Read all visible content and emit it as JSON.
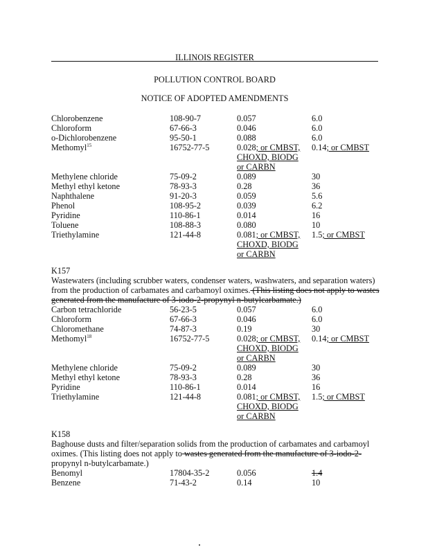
{
  "header": {
    "register": "ILLINOIS REGISTER",
    "board": "POLLUTION CONTROL BOARD",
    "notice": "NOTICE OF ADOPTED AMENDMENTS"
  },
  "table1": [
    {
      "name": "Chlorobenzene",
      "cas": "108-90-7",
      "ww": [
        [
          [
            "0.057",
            ""
          ]
        ]
      ],
      "nww": [
        [
          "6.0",
          ""
        ]
      ]
    },
    {
      "name": "Chloroform",
      "cas": "67-66-3",
      "ww": [
        [
          [
            "0.046",
            ""
          ]
        ]
      ],
      "nww": [
        [
          "6.0",
          ""
        ]
      ]
    },
    {
      "name": "o-Dichlorobenzene",
      "cas": "95-50-1",
      "ww": [
        [
          [
            "0.088",
            ""
          ]
        ]
      ],
      "nww": [
        [
          "6.0",
          ""
        ]
      ]
    },
    {
      "name": "Methomyl",
      "sup": "15",
      "cas": "16752-77-5",
      "ww": [
        [
          [
            "0.028",
            ""
          ],
          [
            "; or CMBST,",
            "u"
          ]
        ],
        [
          [
            "CHOXD, BIODG",
            "u"
          ]
        ],
        [
          [
            "or CARBN",
            "u"
          ]
        ]
      ],
      "nww": [
        [
          "0.14",
          ""
        ],
        [
          "; or CMBST",
          "u"
        ]
      ]
    },
    {
      "name": "Methylene chloride",
      "cas": "75-09-2",
      "ww": [
        [
          [
            "0.089",
            ""
          ]
        ]
      ],
      "nww": [
        [
          "30",
          ""
        ]
      ]
    },
    {
      "name": "Methyl ethyl ketone",
      "cas": "78-93-3",
      "ww": [
        [
          [
            "0.28",
            ""
          ]
        ]
      ],
      "nww": [
        [
          "36",
          ""
        ]
      ]
    },
    {
      "name": "Naphthalene",
      "cas": "91-20-3",
      "ww": [
        [
          [
            "0.059",
            ""
          ]
        ]
      ],
      "nww": [
        [
          "5.6",
          ""
        ]
      ]
    },
    {
      "name": "Phenol",
      "cas": "108-95-2",
      "ww": [
        [
          [
            "0.039",
            ""
          ]
        ]
      ],
      "nww": [
        [
          "6.2",
          ""
        ]
      ]
    },
    {
      "name": "Pyridine",
      "cas": "110-86-1",
      "ww": [
        [
          [
            "0.014",
            ""
          ]
        ]
      ],
      "nww": [
        [
          "16",
          ""
        ]
      ]
    },
    {
      "name": "Toluene",
      "cas": "108-88-3",
      "ww": [
        [
          [
            "0.080",
            ""
          ]
        ]
      ],
      "nww": [
        [
          "10",
          ""
        ]
      ]
    },
    {
      "name": "Triethylamine",
      "cas": "121-44-8",
      "ww": [
        [
          [
            "0.081",
            ""
          ],
          [
            "; or CMBST,",
            "u"
          ]
        ],
        [
          [
            "CHOXD, BIODG",
            "u"
          ]
        ],
        [
          [
            "or CARBN",
            "u"
          ]
        ]
      ],
      "nww": [
        [
          "1.5",
          ""
        ],
        [
          "; or CMBST",
          "u"
        ]
      ]
    }
  ],
  "k157": {
    "code": "K157",
    "desc": [
      [
        [
          "Wastewaters (including scrubber waters, condenser waters, washwaters, and separation waters)",
          ""
        ]
      ],
      [
        [
          "from the production of carbamates and carbamoyl oximes.",
          ""
        ],
        [
          " (This listing does not apply to wastes",
          "s"
        ]
      ],
      [
        [
          "generated from the manufacture of 3-iodo-2-propynyl n-butylcarbamate.)",
          "s"
        ]
      ]
    ],
    "rows": [
      {
        "name": "Carbon tetrachloride",
        "cas": "56-23-5",
        "ww": [
          [
            [
              "0.057",
              ""
            ]
          ]
        ],
        "nww": [
          [
            "6.0",
            ""
          ]
        ]
      },
      {
        "name": "Chloroform",
        "cas": "67-66-3",
        "ww": [
          [
            [
              "0.046",
              ""
            ]
          ]
        ],
        "nww": [
          [
            "6.0",
            ""
          ]
        ]
      },
      {
        "name": "Chloromethane",
        "cas": "74-87-3",
        "ww": [
          [
            [
              "0.19",
              ""
            ]
          ]
        ],
        "nww": [
          [
            "30",
            ""
          ]
        ]
      },
      {
        "name": "Methomyl",
        "sup": "18",
        "cas": "16752-77-5",
        "ww": [
          [
            [
              "0.028",
              ""
            ],
            [
              "; or CMBST,",
              "u"
            ]
          ],
          [
            [
              "CHOXD, BIODG",
              "u"
            ]
          ],
          [
            [
              "or CARBN",
              "u"
            ]
          ]
        ],
        "nww": [
          [
            "0.14",
            ""
          ],
          [
            "; or CMBST",
            "u"
          ]
        ]
      },
      {
        "name": "Methylene chloride",
        "cas": "75-09-2",
        "ww": [
          [
            [
              "0.089",
              ""
            ]
          ]
        ],
        "nww": [
          [
            "30",
            ""
          ]
        ]
      },
      {
        "name": "Methyl ethyl ketone",
        "cas": "78-93-3",
        "ww": [
          [
            [
              "0.28",
              ""
            ]
          ]
        ],
        "nww": [
          [
            "36",
            ""
          ]
        ]
      },
      {
        "name": "Pyridine",
        "cas": "110-86-1",
        "ww": [
          [
            [
              "0.014",
              ""
            ]
          ]
        ],
        "nww": [
          [
            "16",
            ""
          ]
        ]
      },
      {
        "name": "Triethylamine",
        "cas": "121-44-8",
        "ww": [
          [
            [
              "0.081",
              ""
            ],
            [
              "; or CMBST,",
              "u"
            ]
          ],
          [
            [
              "CHOXD, BIODG",
              "u"
            ]
          ],
          [
            [
              "or CARBN",
              "u"
            ]
          ]
        ],
        "nww": [
          [
            "1.5",
            ""
          ],
          [
            "; or CMBST",
            "u"
          ]
        ]
      }
    ]
  },
  "k158": {
    "code": "K158",
    "desc": [
      [
        [
          "Baghouse dusts and filter/separation solids from the production of carbamates and carbamoyl",
          ""
        ]
      ],
      [
        [
          "oximes.  (This listing does not apply to",
          ""
        ],
        [
          " wastes generated from the manufacture of 3-iodo-2-",
          "s"
        ]
      ],
      [
        [
          "propynyl n-butylcarbamate.)",
          ""
        ]
      ]
    ],
    "rows": [
      {
        "name": "Benomyl",
        "cas": "17804-35-2",
        "ww": [
          [
            [
              "0.056",
              ""
            ]
          ]
        ],
        "nww": [
          [
            "1.4",
            "s"
          ]
        ]
      },
      {
        "name": "Benzene",
        "cas": "71-43-2",
        "ww": [
          [
            [
              "0.14",
              ""
            ]
          ]
        ],
        "nww": [
          [
            "10",
            ""
          ]
        ]
      }
    ]
  }
}
